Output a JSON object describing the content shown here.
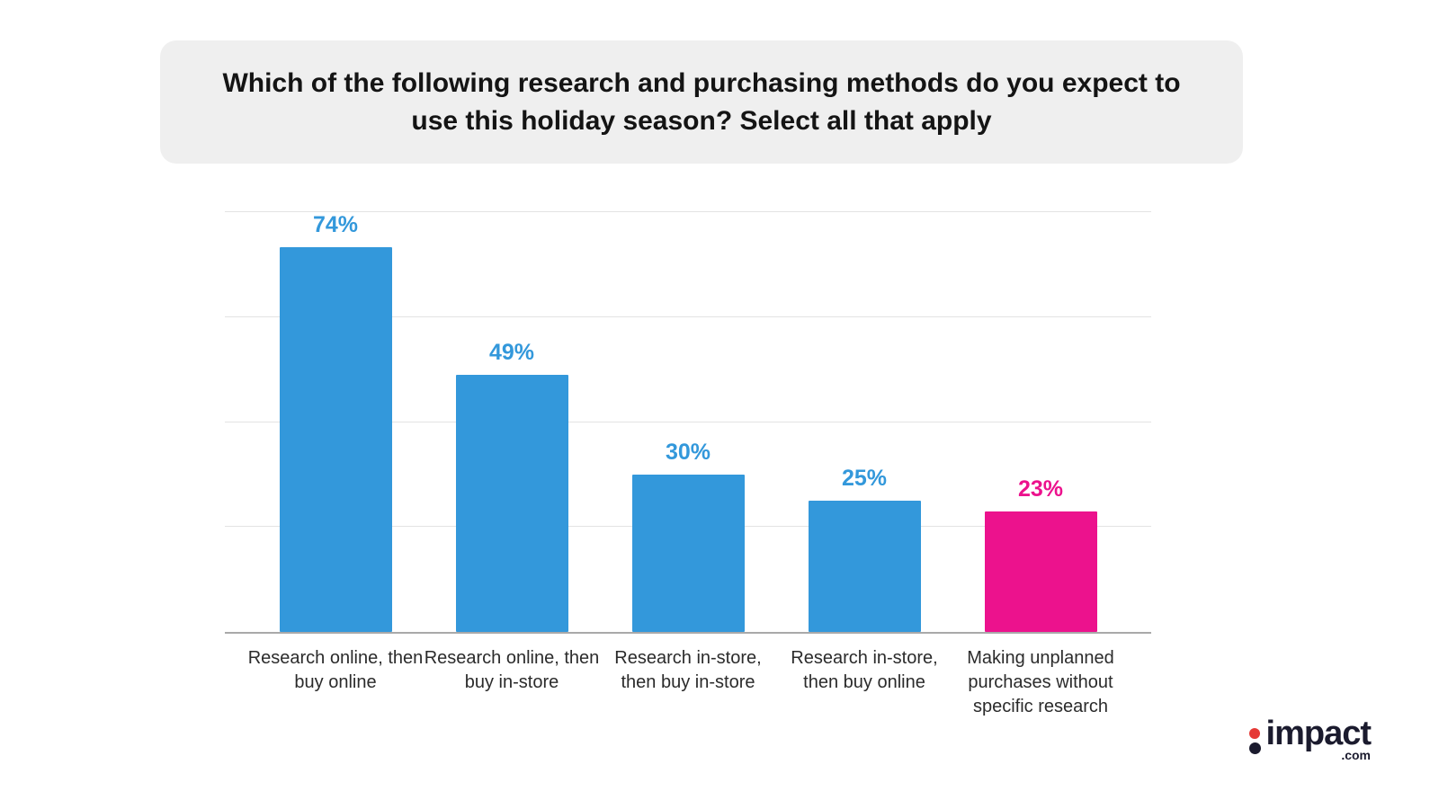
{
  "title": "Which of the following research and purchasing methods do you expect to use this holiday season? Select all that apply",
  "chart_data": {
    "type": "bar",
    "title": "Which of the following research and purchasing methods do you expect to use this holiday season? Select all that apply",
    "categories": [
      "Research online, then buy online",
      "Research online, then buy in-store",
      "Research in-store, then buy in-store",
      "Research in-store, then buy online",
      "Making unplanned purchases without specific research"
    ],
    "values": [
      74,
      49,
      30,
      25,
      23
    ],
    "value_labels": [
      "74%",
      "49%",
      "30%",
      "25%",
      "23%"
    ],
    "bar_colors": [
      "#3398db",
      "#3398db",
      "#3398db",
      "#3398db",
      "#ec128d"
    ],
    "xlabel": "",
    "ylabel": "",
    "ylim": [
      0,
      80
    ],
    "gridlines": [
      20,
      40,
      60,
      80
    ],
    "grid": true,
    "legend": "none"
  },
  "colors": {
    "bar_blue": "#3398db",
    "bar_pink": "#ec128d",
    "gridline": "#e3e3e3",
    "axis": "#a9a9a9",
    "title_bg": "#efefef",
    "title_text": "#141414",
    "logo_dark": "#1b1b2e",
    "logo_red": "#e53935"
  },
  "logo": {
    "text": "impact",
    "suffix": ".com"
  }
}
